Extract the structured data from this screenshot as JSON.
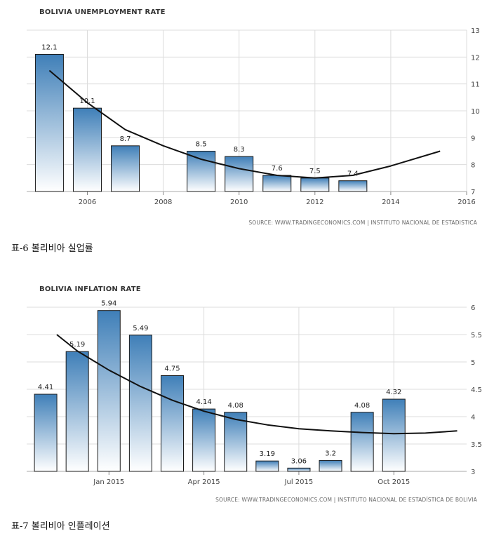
{
  "captions": {
    "chart1": "표-6 볼리비아 실업률",
    "chart2": "표-7 볼리비아 인플레이션"
  },
  "colors": {
    "bar_top": "#3f7fb8",
    "bar_bottom": "#ffffff",
    "bar_border": "#1a1a1a",
    "trend": "#111111",
    "grid": "#dcdcdc"
  },
  "chart_data": [
    {
      "type": "bar",
      "title": "BOLIVIA UNEMPLOYMENT RATE",
      "source": "SOURCE: WWW.TRADINGECONOMICS.COM  |  INSTITUTO NACIONAL DE ESTADISTICA",
      "x": [
        2005,
        2006,
        2007,
        2009,
        2010,
        2011,
        2012,
        2013
      ],
      "values": [
        12.1,
        10.1,
        8.7,
        8.5,
        8.3,
        7.6,
        7.5,
        7.4
      ],
      "data_labels": [
        "12.1",
        "10.1",
        "8.7",
        "8.5",
        "8.3",
        "7.6",
        "7.5",
        "7.4"
      ],
      "xticks": [
        2006,
        2008,
        2010,
        2012,
        2014,
        2016
      ],
      "xtick_labels": [
        "2006",
        "2008",
        "2010",
        "2012",
        "2014",
        "2016"
      ],
      "xlim": [
        2004.4,
        2016
      ],
      "ylim": [
        7,
        13
      ],
      "yticks": [
        7,
        8,
        9,
        10,
        11,
        12,
        13
      ],
      "ytick_labels": [
        "7",
        "8",
        "9",
        "10",
        "11",
        "12",
        "13"
      ],
      "y_axis_side": "right",
      "grid": true,
      "trend": {
        "x": [
          2005,
          2006,
          2007,
          2008,
          2009,
          2010,
          2011,
          2012,
          2013,
          2014,
          2015.3
        ],
        "y": [
          11.5,
          10.3,
          9.3,
          8.7,
          8.2,
          7.85,
          7.6,
          7.5,
          7.6,
          7.95,
          8.5
        ]
      }
    },
    {
      "type": "bar",
      "title": "BOLIVIA INFLATION RATE",
      "source": "SOURCE: WWW.TRADINGECONOMICS.COM  |  INSTITUTO NACIONAL DE ESTADÍSTICA DE BOLIVIA",
      "x": [
        0,
        1,
        2,
        3,
        4,
        5,
        6,
        7,
        8,
        9,
        10,
        11
      ],
      "values": [
        4.41,
        5.19,
        5.94,
        5.49,
        4.75,
        4.14,
        4.08,
        3.19,
        3.06,
        3.2,
        4.08,
        4.32
      ],
      "data_labels": [
        "4.41",
        "5.19",
        "5.94",
        "5.49",
        "4.75",
        "4.14",
        "4.08",
        "3.19",
        "3.06",
        "3.2",
        "4.08",
        "4.32"
      ],
      "xticks": [
        2,
        5,
        8,
        11
      ],
      "xtick_labels": [
        "Jan 2015",
        "Apr 2015",
        "Jul 2015",
        "Oct 2015"
      ],
      "xlim": [
        -0.6,
        13.3
      ],
      "ylim": [
        3,
        6
      ],
      "yticks": [
        3,
        3.5,
        4,
        4.5,
        5,
        5.5,
        6
      ],
      "ytick_labels": [
        "3",
        "3.5",
        "4",
        "4.5",
        "5",
        "5.5",
        "6"
      ],
      "y_axis_side": "right",
      "grid": true,
      "trend": {
        "x": [
          0.35,
          1,
          2,
          3,
          4,
          5,
          6,
          7,
          8,
          9,
          10,
          11,
          12,
          13
        ],
        "y": [
          5.5,
          5.2,
          4.85,
          4.55,
          4.3,
          4.1,
          3.95,
          3.85,
          3.78,
          3.74,
          3.71,
          3.69,
          3.7,
          3.74
        ]
      }
    }
  ]
}
